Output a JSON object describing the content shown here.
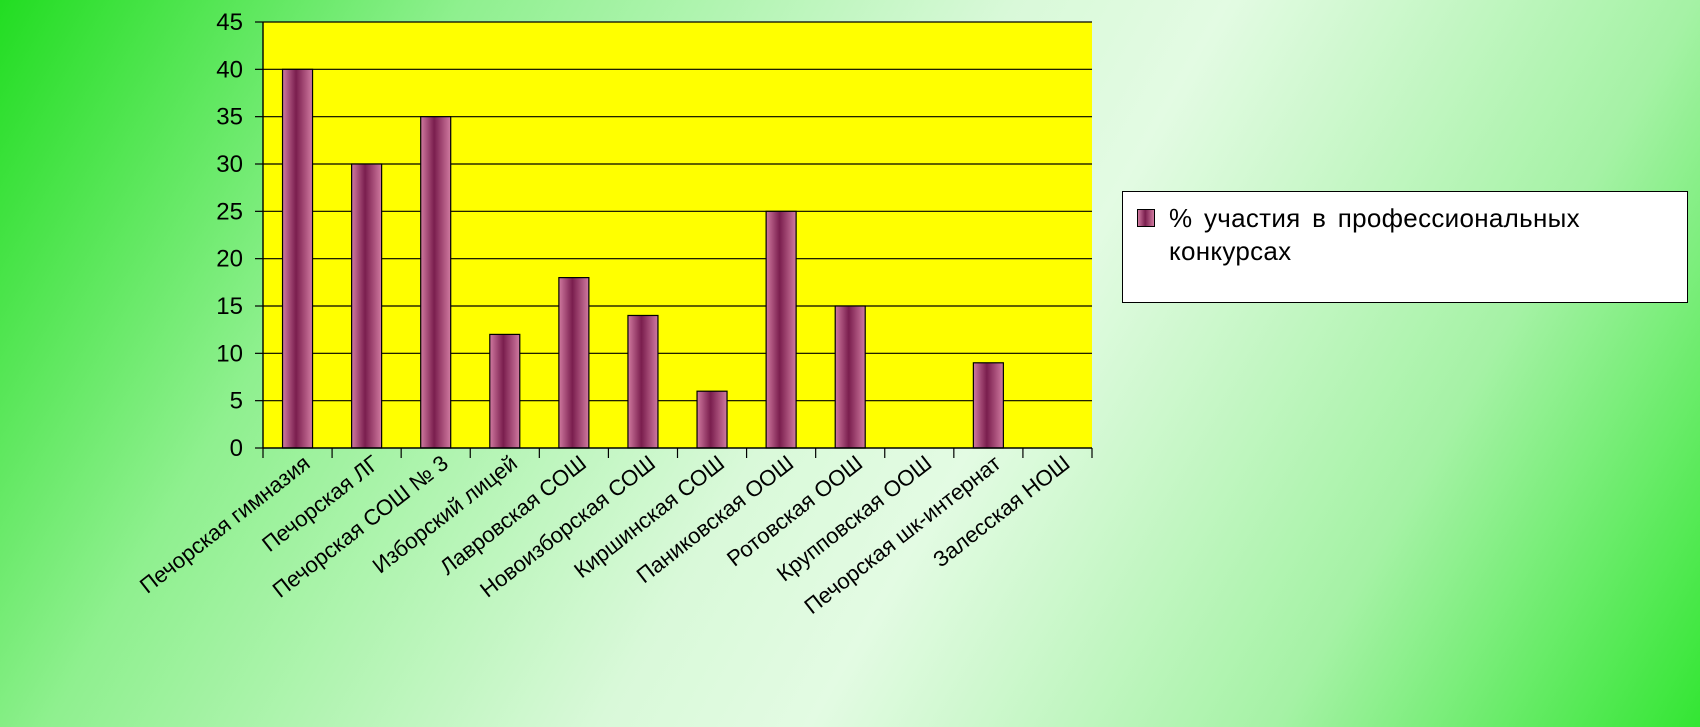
{
  "chart_data": {
    "type": "bar",
    "categories": [
      "Печорская гимназия",
      "Печорская ЛГ",
      "Печорская СОШ № 3",
      "Изборский лицей",
      "Лавровская СОШ",
      "Новоизборская СОШ",
      "Киршинская СОШ",
      "Паниковская ООШ",
      "Ротовская ООШ",
      "Крупповская ООШ",
      "Печорская шк-интернат",
      "Залесская НОШ"
    ],
    "series": [
      {
        "name": "% участия в профессиональных конкурсах",
        "values": [
          40,
          30,
          35,
          12,
          18,
          14,
          6,
          25,
          15,
          0,
          9,
          0
        ]
      }
    ],
    "ylim": [
      0,
      45
    ],
    "yticks": [
      "0",
      "5",
      "10",
      "15",
      "20",
      "25",
      "30",
      "35",
      "40",
      "45"
    ],
    "grid": true,
    "legend_position": "right",
    "colors": {
      "plot_background": "#ffff00",
      "bar_light": "#d07aa0",
      "bar_dark": "#7a1e4e",
      "gridline": "#000000"
    }
  }
}
